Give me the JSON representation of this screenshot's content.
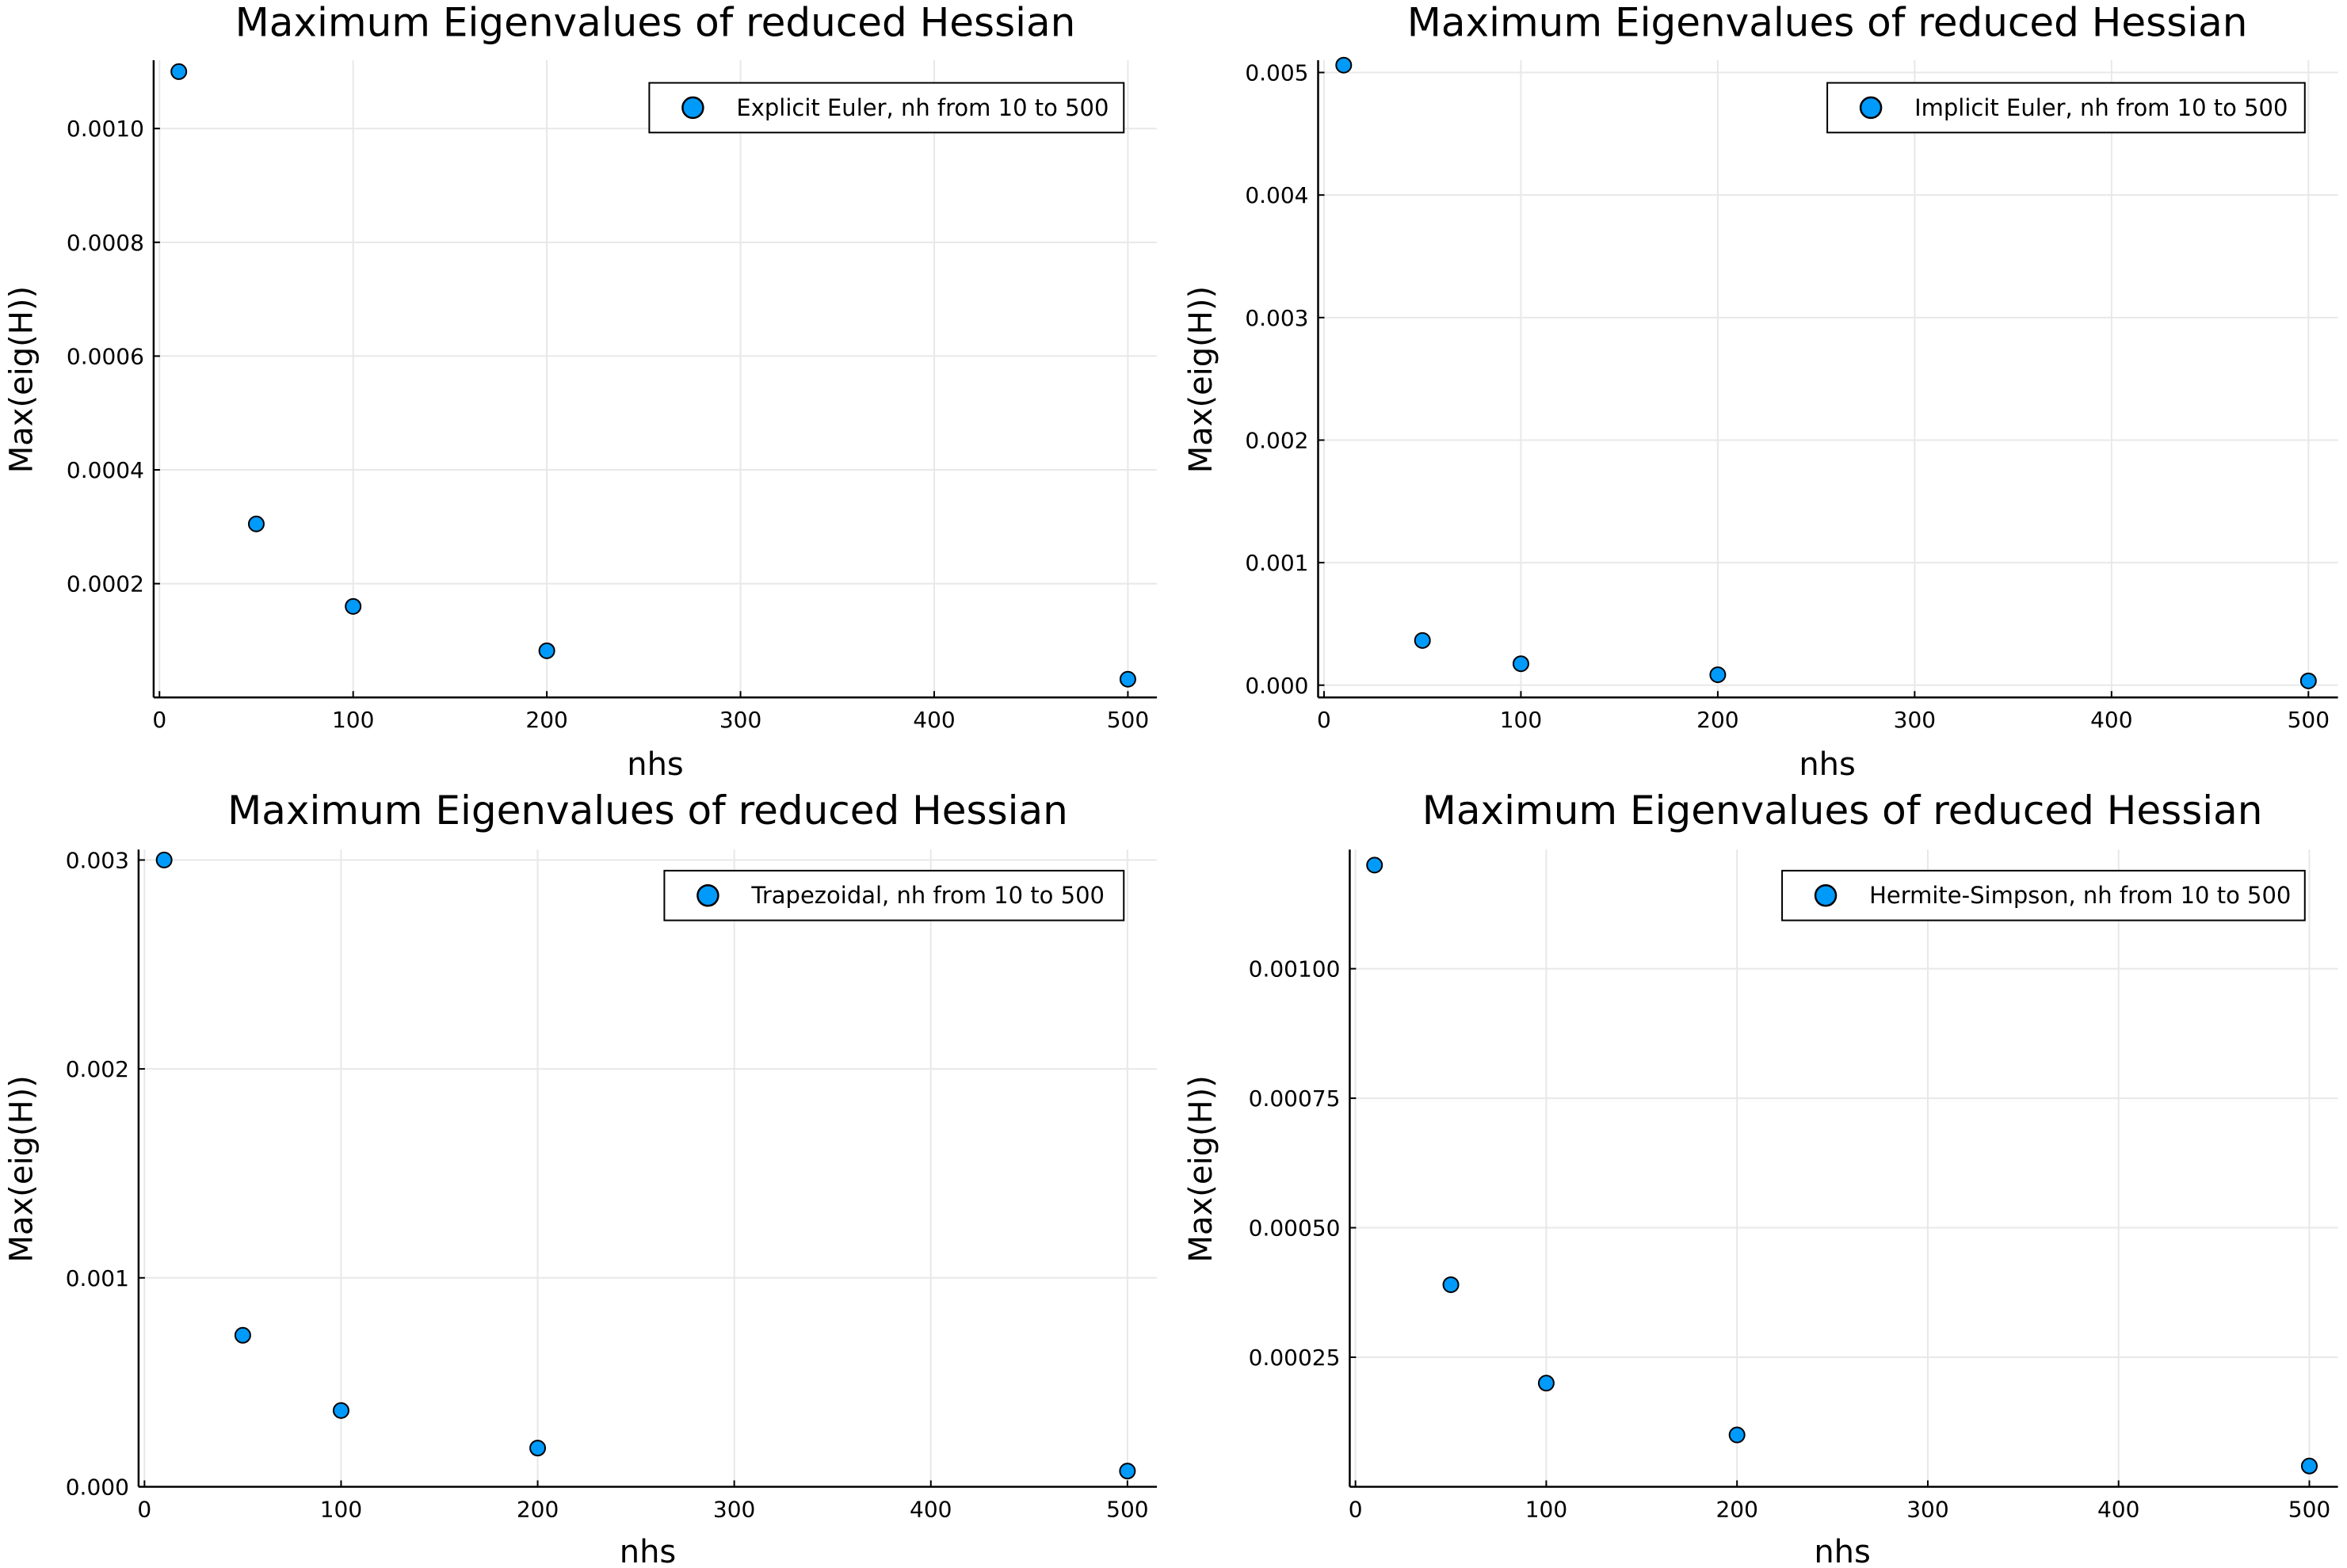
{
  "colors": {
    "marker": "#009AFA",
    "marker_edge": "#000000",
    "grid": "#e8e8e8",
    "axis": "#000000"
  },
  "chart_data": [
    {
      "type": "scatter",
      "title": "Maximum Eigenvalues of reduced Hessian",
      "xlabel": "nhs",
      "ylabel": "Max(eig(H))",
      "legend_position": "top-right",
      "grid": true,
      "series": [
        {
          "name": "Explicit Euler, nh from 10 to 500",
          "x": [
            10,
            50,
            100,
            200,
            500
          ],
          "y": [
            0.0011,
            0.000305,
            0.00016,
            8.2e-05,
            3.2e-05
          ]
        }
      ],
      "xlim": [
        -3,
        515
      ],
      "ylim": [
        0.0,
        0.00112
      ],
      "xticks": [
        0,
        100,
        200,
        300,
        400,
        500
      ],
      "xtick_labels": [
        "0",
        "100",
        "200",
        "300",
        "400",
        "500"
      ],
      "yticks": [
        0.0002,
        0.0004,
        0.0006,
        0.0008,
        0.001
      ],
      "ytick_labels": [
        "0.0002",
        "0.0004",
        "0.0006",
        "0.0008",
        "0.0010"
      ]
    },
    {
      "type": "scatter",
      "title": "Maximum Eigenvalues of reduced Hessian",
      "xlabel": "nhs",
      "ylabel": "Max(eig(H))",
      "legend_position": "top-right",
      "grid": true,
      "series": [
        {
          "name": "Implicit Euler, nh from 10 to 500",
          "x": [
            10,
            50,
            100,
            200,
            500
          ],
          "y": [
            0.00506,
            0.000365,
            0.000175,
            8.5e-05,
            3.5e-05
          ]
        }
      ],
      "xlim": [
        -3,
        515
      ],
      "ylim": [
        -0.0001,
        0.0051
      ],
      "xticks": [
        0,
        100,
        200,
        300,
        400,
        500
      ],
      "xtick_labels": [
        "0",
        "100",
        "200",
        "300",
        "400",
        "500"
      ],
      "yticks": [
        0.0,
        0.001,
        0.002,
        0.003,
        0.004,
        0.005
      ],
      "ytick_labels": [
        "0.000",
        "0.001",
        "0.002",
        "0.003",
        "0.004",
        "0.005"
      ]
    },
    {
      "type": "scatter",
      "title": "Maximum Eigenvalues of reduced Hessian",
      "xlabel": "nhs",
      "ylabel": "Max(eig(H))",
      "legend_position": "top-right",
      "grid": true,
      "series": [
        {
          "name": "Trapezoidal, nh from 10 to 500",
          "x": [
            10,
            50,
            100,
            200,
            500
          ],
          "y": [
            0.003,
            0.000725,
            0.000365,
            0.000185,
            7.5e-05
          ]
        }
      ],
      "xlim": [
        -3,
        515
      ],
      "ylim": [
        0.0,
        0.00305
      ],
      "xticks": [
        0,
        100,
        200,
        300,
        400,
        500
      ],
      "xtick_labels": [
        "0",
        "100",
        "200",
        "300",
        "400",
        "500"
      ],
      "yticks": [
        0.0,
        0.001,
        0.002,
        0.003
      ],
      "ytick_labels": [
        "0.000",
        "0.001",
        "0.002",
        "0.003"
      ]
    },
    {
      "type": "scatter",
      "title": "Maximum Eigenvalues of reduced Hessian",
      "xlabel": "nhs",
      "ylabel": "Max(eig(H))",
      "legend_position": "top-right",
      "grid": true,
      "series": [
        {
          "name": "Hermite-Simpson, nh from 10 to 500",
          "x": [
            10,
            50,
            100,
            200,
            500
          ],
          "y": [
            0.0012,
            0.00039,
            0.0002,
            0.0001,
            4e-05
          ]
        }
      ],
      "xlim": [
        -3,
        515
      ],
      "ylim": [
        0.0,
        0.00123
      ],
      "xticks": [
        0,
        100,
        200,
        300,
        400,
        500
      ],
      "xtick_labels": [
        "0",
        "100",
        "200",
        "300",
        "400",
        "500"
      ],
      "yticks": [
        0.00025,
        0.0005,
        0.00075,
        0.001
      ],
      "ytick_labels": [
        "0.00025",
        "0.00050",
        "0.00075",
        "0.00100"
      ]
    }
  ]
}
